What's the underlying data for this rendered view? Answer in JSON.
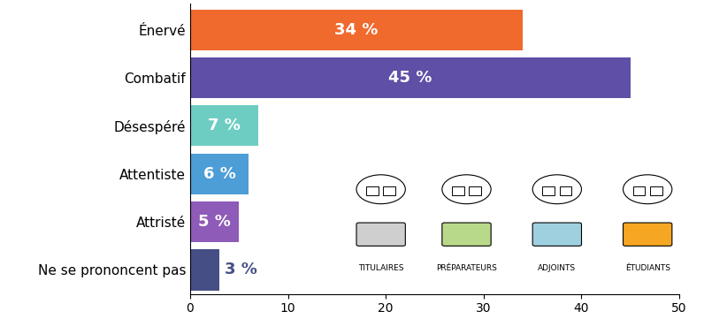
{
  "chart_data": {
    "type": "bar",
    "orientation": "horizontal",
    "categories": [
      "Énervé",
      "Combatif",
      "Désespéré",
      "Attentiste",
      "Attristé",
      "Ne se prononcent pas"
    ],
    "values": [
      34,
      45,
      7,
      6,
      5,
      3
    ],
    "value_labels": [
      "34 %",
      "45 %",
      "7 %",
      "6 %",
      "5 %",
      "3 %"
    ],
    "colors": [
      "#f0692d",
      "#5f4fa6",
      "#6ecdc3",
      "#4d9dd6",
      "#8e5bb8",
      "#454f86"
    ],
    "xlim": [
      0,
      50
    ],
    "xticks": [
      0,
      10,
      20,
      30,
      40,
      50
    ],
    "data_labels": true,
    "grid": false,
    "annotations": [
      "TITULAIRES",
      "PRÉPARATEURS",
      "ADJOINTS",
      "ÉTUDIANTS"
    ]
  }
}
